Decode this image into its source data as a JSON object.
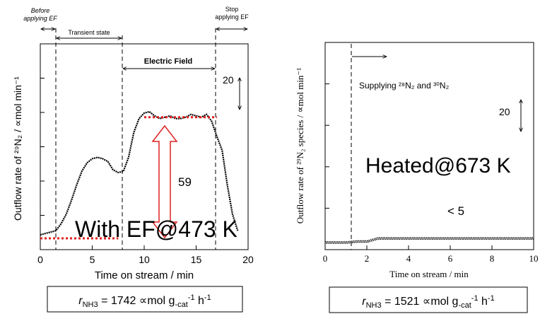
{
  "chart_data": [
    {
      "type": "line",
      "title": "",
      "xlabel": "Time on stream / min",
      "ylabel": "Outflow rate of ²⁹N₂ / ∝mol min⁻¹",
      "xlim": [
        0,
        20
      ],
      "xticks": [
        "0",
        "5",
        "10",
        "15",
        "20"
      ],
      "ylim": [
        0,
        140
      ],
      "grid": false,
      "series": [
        {
          "x": [
            0,
            0.5,
            1,
            1.5,
            2,
            2.5,
            3,
            3.5,
            4,
            4.5,
            5,
            5.5,
            6,
            6.5,
            7,
            7.5,
            8,
            8.5,
            9,
            9.5,
            10,
            10.5,
            11,
            11.5,
            12,
            12.5,
            13,
            13.5,
            14,
            14.5,
            15,
            15.5,
            16,
            16.5,
            17,
            17.5,
            18,
            18.5,
            19
          ],
          "y": [
            2,
            3,
            4,
            5,
            10,
            17,
            27,
            38,
            48,
            54,
            57,
            58,
            57,
            55,
            49,
            47,
            48,
            58,
            76,
            86,
            90,
            91,
            88,
            86,
            87,
            88,
            86,
            86,
            87,
            89,
            88,
            87,
            89,
            84,
            73,
            63,
            38,
            17,
            5
          ]
        }
      ],
      "regions": {
        "before": "Before\napplying EF",
        "transient": "Transient state",
        "field": "Electric Field",
        "stop": "Stop\napplying EF"
      },
      "scale_label": "20",
      "delta_label": "59",
      "level_high": 87,
      "level_low": 0,
      "condition": "With EF@473 K",
      "rate": {
        "prefix": "r",
        "sub": "NH3",
        "text": " = 1742 ∝mol g",
        "sub2": "-cat",
        "sup": "-1",
        "tail": " h",
        "sup2": "-1"
      }
    },
    {
      "type": "scatter",
      "title": "",
      "xlabel": "Time on stream / min",
      "ylabel": "Outflow rate of ²⁹N₂ species / ∝mol min⁻¹",
      "xlim": [
        0,
        10
      ],
      "xticks": [
        "0",
        "2",
        "4",
        "6",
        "8",
        "10"
      ],
      "ylim": [
        0,
        100
      ],
      "grid": false,
      "series": [
        {
          "x": [
            0,
            0.5,
            1,
            1.5,
            2,
            2.5,
            3,
            3.5,
            4,
            4.5,
            5,
            5.5,
            6,
            6.5,
            7,
            7.5,
            8,
            8.5,
            9,
            9.5,
            10
          ],
          "y": [
            1,
            1,
            1,
            1.5,
            1.5,
            3,
            3,
            3,
            3,
            3,
            3,
            3,
            3,
            3,
            3,
            3,
            3,
            3,
            3,
            3,
            3
          ]
        }
      ],
      "annotation": "Supplying ²⁸N₂ and ³⁰N₂",
      "scale_label": "20",
      "delta_label": "< 5",
      "condition": "Heated@673 K",
      "rate": {
        "prefix": "r",
        "sub": "NH3",
        "text": " = 1521 ∝mol g",
        "sub2": "-cat",
        "sup": "-1",
        "tail": " h",
        "sup2": "-1"
      }
    }
  ]
}
